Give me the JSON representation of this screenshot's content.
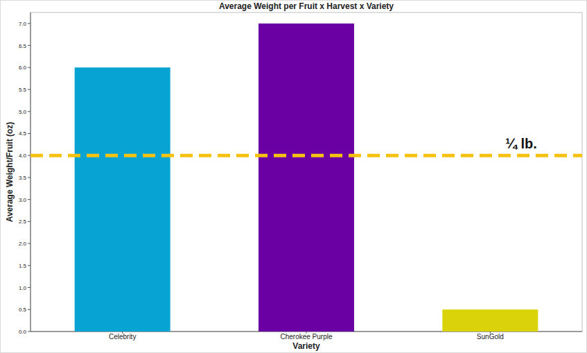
{
  "chart_data": {
    "type": "bar",
    "title": "Average Weight per Fruit x Harvest x Variety",
    "x_label": "Variety",
    "y_label": "Average Weight/Fruit (oz)",
    "categories": [
      "Celebrity",
      "Cherokee Purple",
      "SunGold"
    ],
    "values": [
      6.0,
      7.0,
      0.5
    ],
    "colors": [
      "#07a3d3",
      "#6a00a3",
      "#dad30a"
    ],
    "ylim": [
      0,
      7.25
    ],
    "yticks": [
      {
        "value": 0,
        "label": "0.0"
      },
      0.5,
      {
        "value": 1,
        "label": "1.0"
      },
      1.5,
      {
        "value": 2,
        "label": "2.0"
      },
      2.5,
      {
        "value": 3,
        "label": "3.0"
      },
      3.5,
      {
        "value": 4,
        "label": "4.0"
      },
      4.5,
      {
        "value": 5,
        "label": "5.0"
      },
      5.5,
      {
        "value": 6,
        "label": "6.0"
      },
      6.5,
      {
        "value": 7,
        "label": "7.0"
      }
    ],
    "grid": false,
    "annotations": [
      {
        "text": "¼ lb.",
        "y": 4
      }
    ]
  }
}
